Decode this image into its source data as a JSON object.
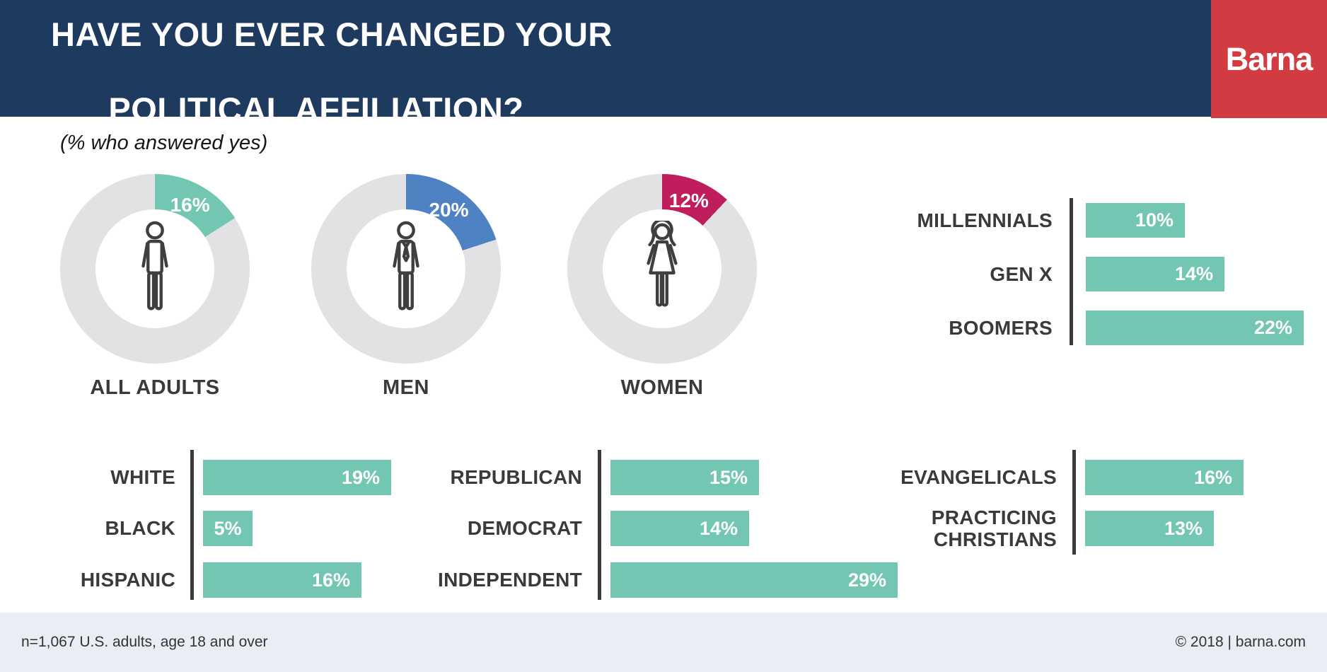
{
  "header": {
    "title_line1": "HAVE YOU EVER CHANGED YOUR",
    "title_line2": "POLITICAL AFFILIATION?",
    "logo": "Barna"
  },
  "subtitle": "(% who answered yes)",
  "colors": {
    "navy": "#1e3a5f",
    "red": "#d23b42",
    "teal": "#72c6b2",
    "blue": "#4e82c3",
    "magenta": "#c01d5c",
    "donut_track": "#e2e2e4",
    "axis": "#3b3b3b",
    "label_dark": "#3a3a3a",
    "footer_bg": "#e8eef3"
  },
  "chart_data": [
    {
      "type": "donut",
      "title": "ALL ADULTS",
      "value": 16,
      "value_label": "16%",
      "max": 100,
      "color": "#72c6b2",
      "track_color": "#e2e2e4",
      "icon": "male-icon"
    },
    {
      "type": "donut",
      "title": "MEN",
      "value": 20,
      "value_label": "20%",
      "max": 100,
      "color": "#4e82c3",
      "track_color": "#e2e2e4",
      "icon": "male-tie-icon"
    },
    {
      "type": "donut",
      "title": "WOMEN",
      "value": 12,
      "value_label": "12%",
      "max": 100,
      "color": "#c01d5c",
      "track_color": "#e2e2e4",
      "icon": "female-icon"
    },
    {
      "type": "bar",
      "group": "generations",
      "orientation": "horizontal",
      "bar_color": "#72c6b2",
      "xlim": [
        0,
        22
      ],
      "categories": [
        "MILLENNIALS",
        "GEN X",
        "BOOMERS"
      ],
      "values": [
        10,
        14,
        22
      ],
      "value_labels": [
        "10%",
        "14%",
        "22%"
      ]
    },
    {
      "type": "bar",
      "group": "ethnicity",
      "orientation": "horizontal",
      "bar_color": "#72c6b2",
      "xlim": [
        0,
        19
      ],
      "categories": [
        "WHITE",
        "BLACK",
        "HISPANIC"
      ],
      "values": [
        19,
        5,
        16
      ],
      "value_labels": [
        "19%",
        "5%",
        "16%"
      ]
    },
    {
      "type": "bar",
      "group": "political-affiliation",
      "orientation": "horizontal",
      "bar_color": "#72c6b2",
      "xlim": [
        0,
        29
      ],
      "categories": [
        "REPUBLICAN",
        "DEMOCRAT",
        "INDEPENDENT"
      ],
      "values": [
        15,
        14,
        29
      ],
      "value_labels": [
        "15%",
        "14%",
        "29%"
      ]
    },
    {
      "type": "bar",
      "group": "faith-segments",
      "orientation": "horizontal",
      "bar_color": "#72c6b2",
      "xlim": [
        0,
        16
      ],
      "categories": [
        "EVANGELICALS",
        "PRACTICING CHRISTIANS"
      ],
      "values": [
        16,
        13
      ],
      "value_labels": [
        "16%",
        "13%"
      ]
    }
  ],
  "footer": {
    "sample_note": "n=1,067 U.S. adults, age 18 and over",
    "copyright": "© 2018 | barna.com"
  }
}
